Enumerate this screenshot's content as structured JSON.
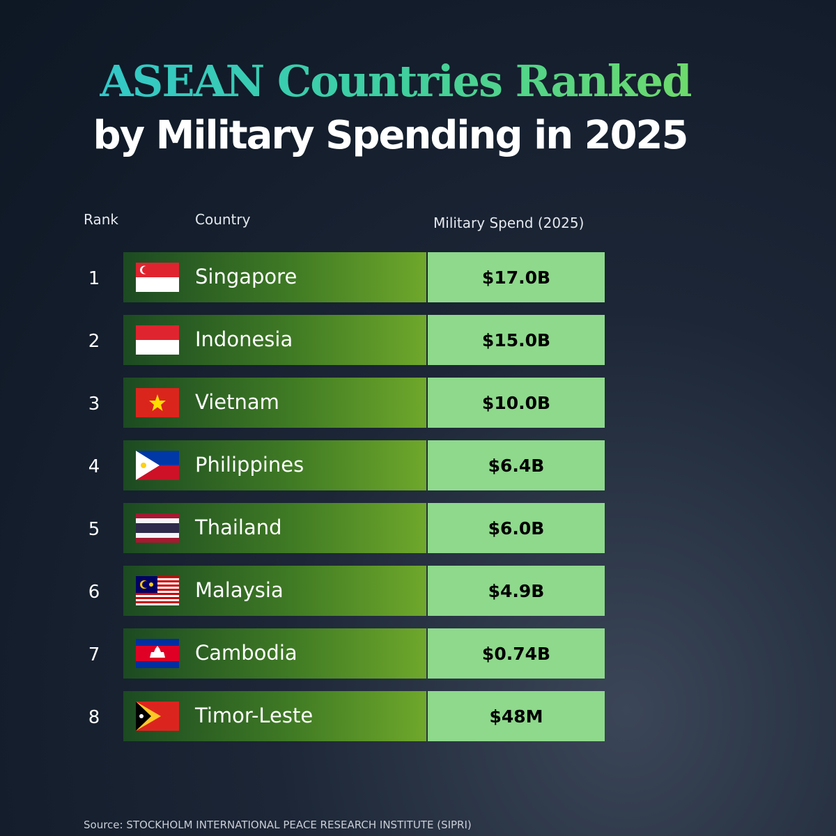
{
  "header": {
    "title_line1": "ASEAN Countries Ranked",
    "title_line2": "by Military Spending in 2025"
  },
  "table": {
    "columns": [
      "Rank",
      "Country",
      "Military Spend (2025)"
    ],
    "rows": [
      [
        "1",
        "Singapore",
        "$17.0B"
      ],
      [
        "2",
        "Indonesia",
        "$15.0B"
      ],
      [
        "3",
        "Vietnam",
        "$10.0B"
      ],
      [
        "4",
        "Philippines",
        "$6.4B"
      ],
      [
        "5",
        "Thailand",
        "$6.0B"
      ],
      [
        "6",
        "Malaysia",
        "$4.9B"
      ],
      [
        "7",
        "Cambodia",
        "$0.74B"
      ],
      [
        "8",
        "Timor-Leste",
        "$48M"
      ]
    ]
  },
  "footer": {
    "source": "Source: STOCKHOLM INTERNATIONAL PEACE RESEARCH INSTITUTE (SIPRI)"
  }
}
